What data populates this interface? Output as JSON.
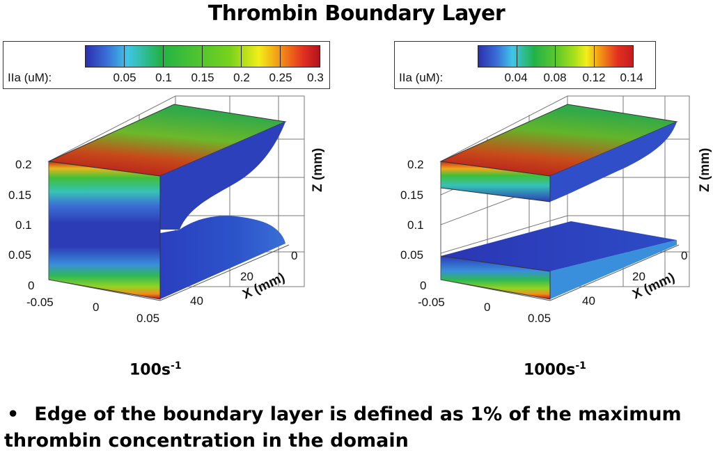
{
  "title": "Thrombin Boundary Layer",
  "colormap": [
    "#2b2fae",
    "#3a6fd6",
    "#3fc6e6",
    "#22b24a",
    "#7ad31c",
    "#f2ee18",
    "#f28a16",
    "#e23121",
    "#b3121c"
  ],
  "left": {
    "legend": {
      "label": "IIa (uM):",
      "ticks": [
        "0.05",
        "0.1",
        "0.15",
        "0.2",
        "0.25",
        "0.3"
      ]
    },
    "z_ticks": [
      "0.2",
      "0.15",
      "0.1",
      "0.05",
      "0"
    ],
    "y_ticks": [
      "-0.05",
      "0",
      "0.05"
    ],
    "x_ticks": [
      "0",
      "20",
      "40"
    ],
    "x_title": "X (mm)",
    "z_title": "Z (mm)",
    "caption_base": "100s",
    "caption_exp": "-1"
  },
  "right": {
    "legend": {
      "label": "IIa (uM):",
      "ticks": [
        "0.04",
        "0.08",
        "0.12",
        "0.14"
      ]
    },
    "z_ticks": [
      "0.2",
      "0.15",
      "0.1",
      "0.05",
      "0"
    ],
    "y_ticks": [
      "-0.05",
      "0",
      "0.05"
    ],
    "x_ticks": [
      "0",
      "20",
      "40"
    ],
    "x_title": "X (mm)",
    "z_title": "Z (mm)",
    "caption_base": "1000s",
    "caption_exp": "-1"
  },
  "bullet": {
    "symbol": "•",
    "text": "Edge of the boundary layer is defined as 1% of the maximum thrombin concentration in the domain"
  }
}
